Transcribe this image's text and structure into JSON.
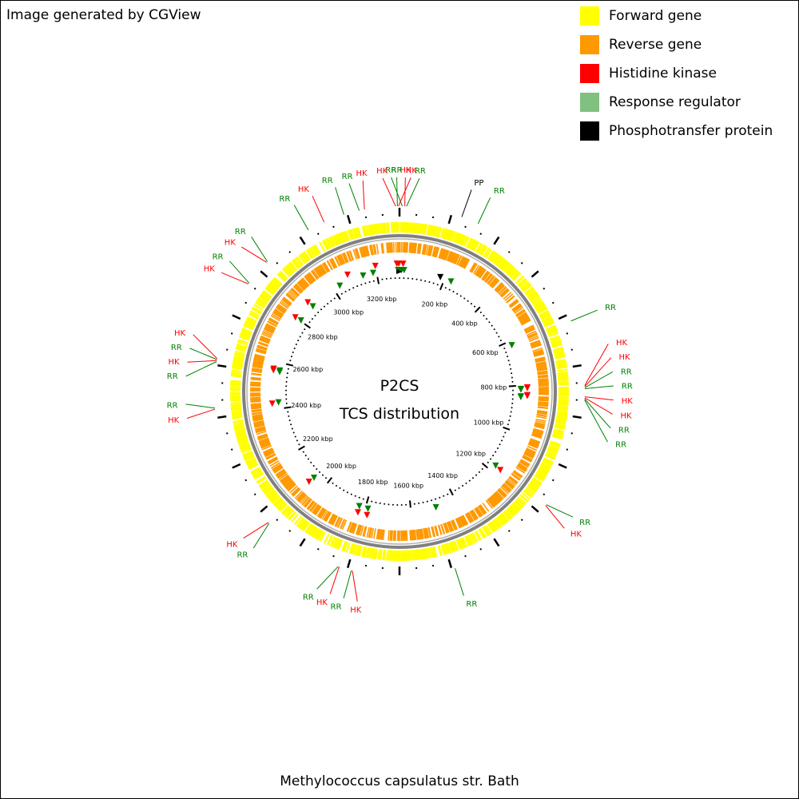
{
  "header": {
    "credit": "Image generated by CGView"
  },
  "footer": {
    "organism": "Methylococcus capsulatus str. Bath"
  },
  "center": {
    "title": "P2CS",
    "subtitle": "TCS distribution"
  },
  "legend": [
    {
      "label": "Forward gene",
      "color": "#ffff00"
    },
    {
      "label": "Reverse gene",
      "color": "#ff9900"
    },
    {
      "label": "Histidine kinase",
      "color": "#ff0000"
    },
    {
      "label": "Response regulator",
      "color": "#80c080"
    },
    {
      "label": "Phosphotransfer protein",
      "color": "#000000"
    }
  ],
  "colors": {
    "HK": "#ff0000",
    "RR": "#008000",
    "PP": "#000000",
    "forward": "#ffff00",
    "reverse": "#ff9900",
    "backbone": "#808080"
  },
  "genome": {
    "length_kbp": 3300,
    "tick_labels": [
      "200 kbp",
      "400 kbp",
      "600 kbp",
      "800 kbp",
      "1000 kbp",
      "1200 kbp",
      "1400 kbp",
      "1600 kbp",
      "1800 kbp",
      "2000 kbp",
      "2200 kbp",
      "2400 kbp",
      "2600 kbp",
      "2800 kbp",
      "3000 kbp",
      "3200 kbp"
    ]
  },
  "features": [
    {
      "label": "HK",
      "type": "HK",
      "pos_kbp": 3289
    },
    {
      "label": "RR",
      "type": "RR",
      "pos_kbp": 3294
    },
    {
      "label": "HK",
      "type": "HK",
      "pos_kbp": 3297
    },
    {
      "label": "RR",
      "type": "RR",
      "pos_kbp": 8
    },
    {
      "label": "HK",
      "type": "HK",
      "pos_kbp": 15
    },
    {
      "label": "RR",
      "type": "RR",
      "pos_kbp": 20
    },
    {
      "label": "PP",
      "type": "PP",
      "pos_kbp": 180
    },
    {
      "label": "RR",
      "type": "RR",
      "pos_kbp": 230
    },
    {
      "label": "RR",
      "type": "RR",
      "pos_kbp": 620
    },
    {
      "label": "HK",
      "type": "HK",
      "pos_kbp": 808
    },
    {
      "label": "HK",
      "type": "HK",
      "pos_kbp": 811
    },
    {
      "label": "RR",
      "type": "RR",
      "pos_kbp": 814
    },
    {
      "label": "RR",
      "type": "RR",
      "pos_kbp": 817
    },
    {
      "label": "HK",
      "type": "HK",
      "pos_kbp": 840
    },
    {
      "label": "HK",
      "type": "HK",
      "pos_kbp": 843
    },
    {
      "label": "RR",
      "type": "RR",
      "pos_kbp": 846
    },
    {
      "label": "RR",
      "type": "RR",
      "pos_kbp": 849
    },
    {
      "label": "RR",
      "type": "RR",
      "pos_kbp": 1170
    },
    {
      "label": "HK",
      "type": "HK",
      "pos_kbp": 1173
    },
    {
      "label": "RR",
      "type": "RR",
      "pos_kbp": 1490
    },
    {
      "label": "HK",
      "type": "HK",
      "pos_kbp": 1785
    },
    {
      "label": "RR",
      "type": "RR",
      "pos_kbp": 1788
    },
    {
      "label": "HK",
      "type": "HK",
      "pos_kbp": 1824
    },
    {
      "label": "RR",
      "type": "RR",
      "pos_kbp": 1827
    },
    {
      "label": "RR",
      "type": "RR",
      "pos_kbp": 2060
    },
    {
      "label": "HK",
      "type": "HK",
      "pos_kbp": 2063
    },
    {
      "label": "HK",
      "type": "HK",
      "pos_kbp": 2425
    },
    {
      "label": "RR",
      "type": "RR",
      "pos_kbp": 2428
    },
    {
      "label": "RR",
      "type": "RR",
      "pos_kbp": 2560
    },
    {
      "label": "HK",
      "type": "HK",
      "pos_kbp": 2563
    },
    {
      "label": "RR",
      "type": "RR",
      "pos_kbp": 2566
    },
    {
      "label": "HK",
      "type": "HK",
      "pos_kbp": 2569
    },
    {
      "label": "HK",
      "type": "HK",
      "pos_kbp": 2800
    },
    {
      "label": "RR",
      "type": "RR",
      "pos_kbp": 2803
    },
    {
      "label": "HK",
      "type": "HK",
      "pos_kbp": 2880
    },
    {
      "label": "RR",
      "type": "RR",
      "pos_kbp": 2883
    },
    {
      "label": "RR",
      "type": "RR",
      "pos_kbp": 3030
    },
    {
      "label": "HK",
      "type": "HK",
      "pos_kbp": 3080
    },
    {
      "label": "RR",
      "type": "RR",
      "pos_kbp": 3140
    },
    {
      "label": "RR",
      "type": "RR",
      "pos_kbp": 3185
    },
    {
      "label": "HK",
      "type": "HK",
      "pos_kbp": 3200
    }
  ]
}
